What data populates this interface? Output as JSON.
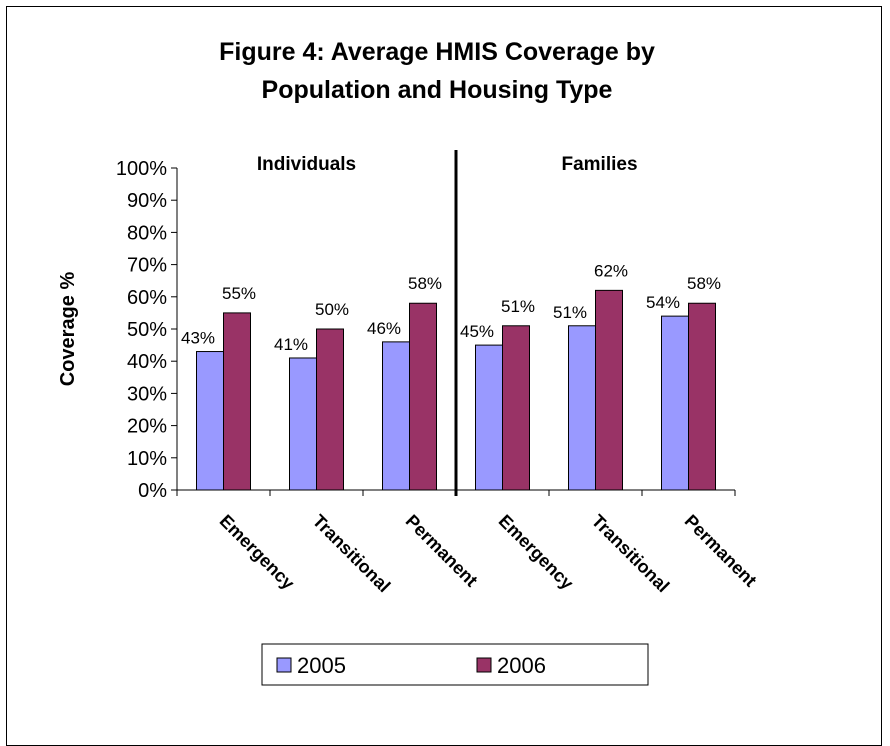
{
  "chart_data": {
    "type": "bar",
    "title_lines": [
      "Figure 4: Average HMIS Coverage by",
      "Population and Housing Type"
    ],
    "groups": [
      {
        "label": "Individuals",
        "categories": [
          "Emergency",
          "Transitional",
          "Permanent"
        ]
      },
      {
        "label": "Families",
        "categories": [
          "Emergency",
          "Transitional",
          "Permanent"
        ]
      }
    ],
    "categories": [
      "Emergency",
      "Transitional",
      "Permanent",
      "Emergency",
      "Transitional",
      "Permanent"
    ],
    "series": [
      {
        "name": "2005",
        "color": "#9999ff",
        "values": [
          43,
          41,
          46,
          45,
          51,
          54
        ],
        "labels": [
          "43%",
          "41%",
          "46%",
          "45%",
          "51%",
          "54%"
        ]
      },
      {
        "name": "2006",
        "color": "#993366",
        "values": [
          55,
          50,
          58,
          51,
          62,
          58
        ],
        "labels": [
          "55%",
          "50%",
          "58%",
          "51%",
          "62%",
          "58%"
        ]
      }
    ],
    "ylabel": "Coverage %",
    "ylim": [
      0,
      100
    ],
    "yticks": [
      "0%",
      "10%",
      "20%",
      "30%",
      "40%",
      "50%",
      "60%",
      "70%",
      "80%",
      "90%",
      "100%"
    ],
    "grid": false,
    "legend_position": "bottom"
  }
}
